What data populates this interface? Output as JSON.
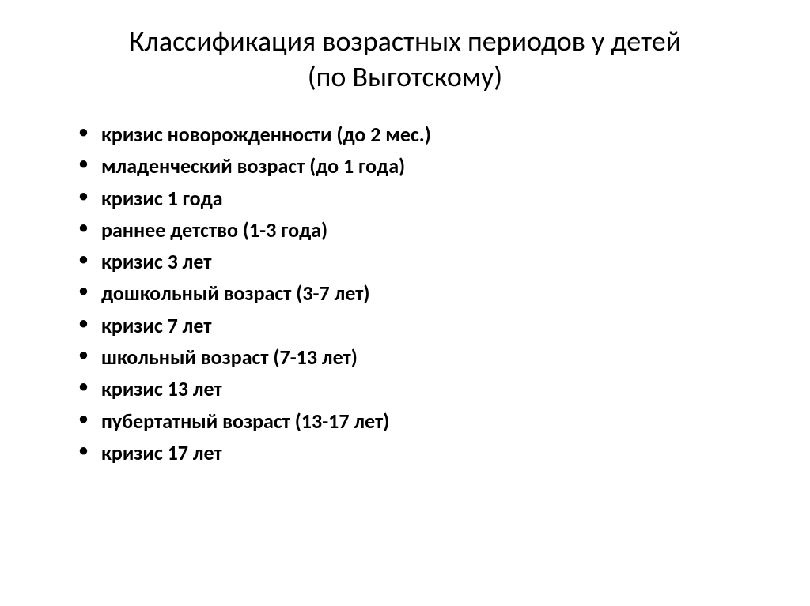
{
  "title_line1": "Классификация возрастных периодов у детей",
  "title_line2": "(по Выготскому)",
  "items": [
    "кризис новорожденности (до 2 мес.)",
    "младенческий возраст (до 1 года)",
    "кризис 1 года",
    "раннее детство (1-3 года)",
    "кризис 3 лет",
    "дошкольный возраст (3-7 лет)",
    "кризис 7 лет",
    "школьный возраст (7-13 лет)",
    "кризис 13 лет",
    "пубертатный возраст (13-17 лет)",
    "кризис 17 лет"
  ],
  "style": {
    "background_color": "#ffffff",
    "text_color": "#000000",
    "title_fontsize": 36,
    "title_fontweight": 400,
    "item_fontsize": 26,
    "item_fontweight": 700,
    "font_family": "Calibri"
  }
}
